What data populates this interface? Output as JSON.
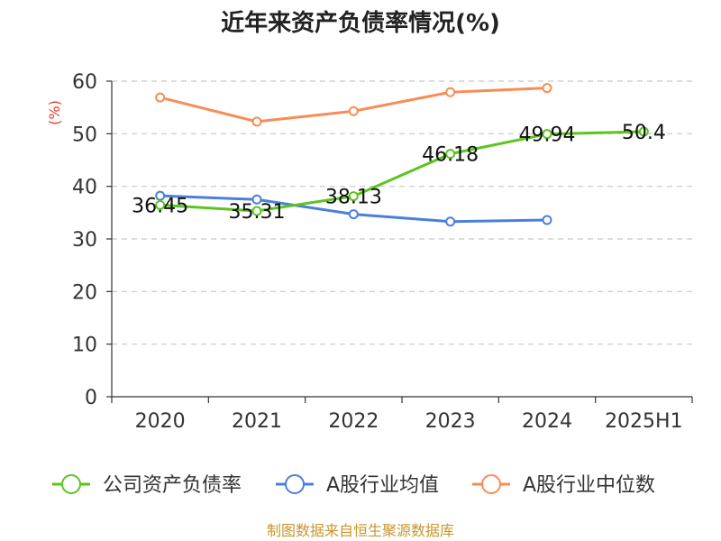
{
  "chart_data": {
    "type": "line",
    "title": "近年来资产负债率情况(%)",
    "ylabel": "(%)",
    "xlabel": "",
    "categories": [
      "2020",
      "2021",
      "2022",
      "2023",
      "2024",
      "2025H1"
    ],
    "ylim": [
      0,
      60
    ],
    "yticks": [
      0,
      10,
      20,
      30,
      40,
      50,
      60
    ],
    "grid": true,
    "legend_position": "bottom",
    "series": [
      {
        "name": "公司资产负债率",
        "color": "#5cc41f",
        "values": [
          36.45,
          35.31,
          38.13,
          46.18,
          49.94,
          50.4
        ],
        "labels": [
          "36.45",
          "35.31",
          "38.13",
          "46.18",
          "49.94",
          "50.4"
        ]
      },
      {
        "name": "A股行业均值",
        "color": "#4a7fdc",
        "values": [
          38.2,
          37.5,
          34.7,
          33.3,
          33.6,
          null
        ]
      },
      {
        "name": "A股行业中位数",
        "color": "#f78d55",
        "values": [
          56.9,
          52.3,
          54.3,
          57.9,
          58.7,
          null
        ]
      }
    ],
    "source": "制图数据来自恒生聚源数据库"
  }
}
